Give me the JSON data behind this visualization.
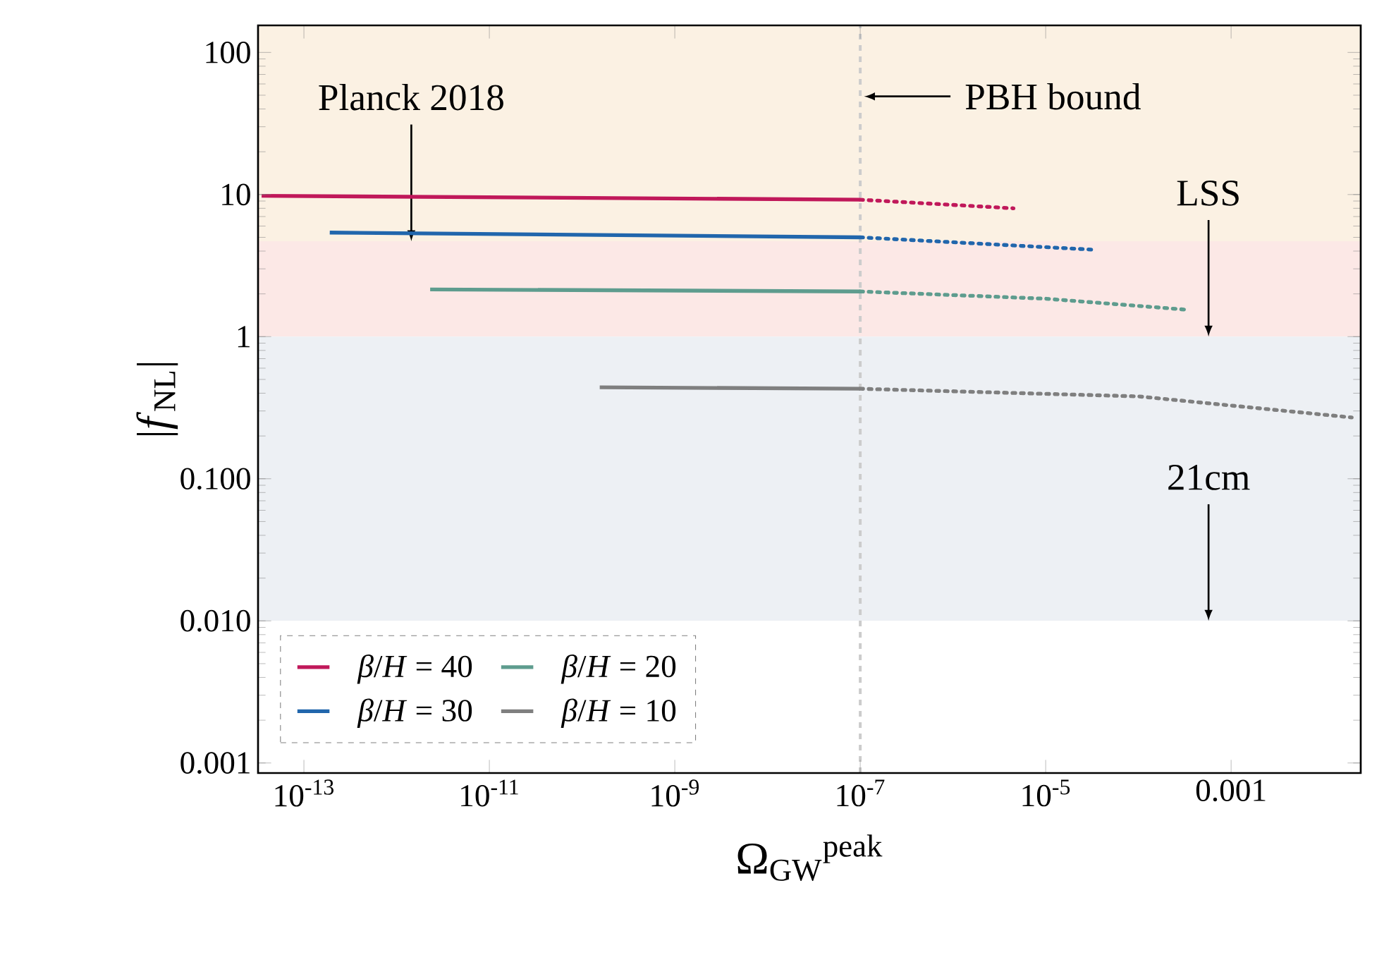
{
  "chart_data": {
    "type": "line",
    "xlabel": "Ω$_{GW}$$^{peak}$",
    "ylabel": "|*f*$_{NL}$|",
    "log": "xy",
    "xlim": [
      3.2e-14,
      0.025
    ],
    "ylim": [
      0.00085,
      155
    ],
    "xticks": [
      {
        "value": 1e-13,
        "label": "10$^{-13}$"
      },
      {
        "value": 1e-11,
        "label": "10$^{-11}$"
      },
      {
        "value": 1e-09,
        "label": "10$^{-9}$"
      },
      {
        "value": 1e-07,
        "label": "10$^{-7}$"
      },
      {
        "value": 1e-05,
        "label": "10$^{-5}$"
      },
      0.001
    ],
    "yticks": [
      0.001,
      {
        "value": 0.01,
        "label": "0.010"
      },
      {
        "value": 0.1,
        "label": "0.100"
      },
      1,
      10,
      100
    ],
    "series": [
      {
        "name": "*β*/*H* = 40",
        "color": "#c0185a",
        "x": [
          3.5e-14,
          1e-07
        ],
        "values": [
          9.8,
          9.2
        ]
      },
      {
        "name": "*β*/*H* = 30",
        "color": "#2166ac",
        "x": [
          1.9e-13,
          1e-07
        ],
        "values": [
          5.4,
          5.0
        ]
      },
      {
        "name": "*β*/*H* = 20",
        "color": "#5e9c8e",
        "x": [
          2.3e-12,
          1e-07
        ],
        "values": [
          2.15,
          2.08
        ]
      },
      {
        "name": "*β*/*H* = 10",
        "color": "#7f7f7f",
        "x": [
          1.55e-10,
          1e-07
        ],
        "values": [
          0.44,
          0.43
        ]
      },
      {
        "color": "#c0185a",
        "line_style": "dotted",
        "x": [
          1e-07,
          4.5e-06
        ],
        "values": [
          9.2,
          8.0
        ]
      },
      {
        "color": "#2166ac",
        "line_style": "dotted",
        "x": [
          1e-07,
          3.1e-05
        ],
        "values": [
          5.0,
          4.1
        ]
      },
      {
        "color": "#5e9c8e",
        "line_style": "dotted",
        "x": [
          1e-07,
          1e-05,
          0.00032
        ],
        "values": [
          2.08,
          1.85,
          1.55
        ]
      },
      {
        "color": "#7f7f7f",
        "line_style": "dotted",
        "x": [
          1e-07,
          0.0001,
          0.02
        ],
        "values": [
          0.43,
          0.38,
          0.27
        ]
      }
    ],
    "bands": [
      {
        "axis": "y",
        "from": 4.7,
        "to": 155,
        "color": "#fbf1e3",
        "label": "Planck 2018"
      },
      {
        "axis": "y",
        "from": 1,
        "to": 4.7,
        "color": "#fce8e6",
        "label": "LSS"
      },
      {
        "axis": "y",
        "from": 0.01,
        "to": 1,
        "color": "#edf0f4",
        "label": "21cm"
      }
    ],
    "ref_lines": [
      {
        "axis": "x",
        "value": 1e-07,
        "label": "PBH bound",
        "color": "#cccccc",
        "line_style": "dashed"
      }
    ],
    "legend": "bottom left",
    "grid": false,
    "line_style": "solid",
    "marker": "none"
  }
}
